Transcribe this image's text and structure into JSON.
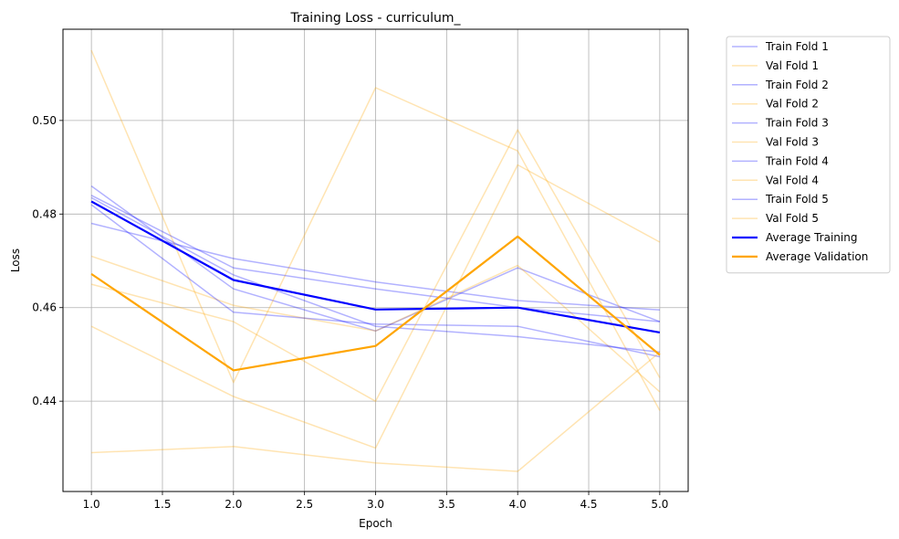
{
  "chart_data": {
    "type": "line",
    "title": "Training Loss - curriculum_",
    "xlabel": "Epoch",
    "ylabel": "Loss",
    "x": [
      1,
      2,
      3,
      4,
      5
    ],
    "xlim": [
      0.8,
      5.2
    ],
    "ylim": [
      0.4207,
      0.5195
    ],
    "xticks": [
      1.0,
      1.5,
      2.0,
      2.5,
      3.0,
      3.5,
      4.0,
      4.5,
      5.0
    ],
    "xtick_labels": [
      "1.0",
      "1.5",
      "2.0",
      "2.5",
      "3.0",
      "3.5",
      "4.0",
      "4.5",
      "5.0"
    ],
    "yticks": [
      0.44,
      0.46,
      0.48,
      0.5
    ],
    "ytick_labels": [
      "0.44",
      "0.46",
      "0.48",
      "0.50"
    ],
    "grid": true,
    "legend_position": "outside-right",
    "colors": {
      "train": "#0000ff",
      "val": "#ffa500"
    },
    "series": [
      {
        "name": "Train Fold 1",
        "kind": "train",
        "values": [
          0.486,
          0.464,
          0.455,
          0.4685,
          0.457
        ]
      },
      {
        "name": "Val Fold 1",
        "kind": "val",
        "values": [
          0.515,
          0.444,
          0.507,
          0.4935,
          0.438
        ]
      },
      {
        "name": "Train Fold 2",
        "kind": "train",
        "values": [
          0.478,
          0.4705,
          0.4655,
          0.4615,
          0.4595
        ]
      },
      {
        "name": "Val Fold 2",
        "kind": "val",
        "values": [
          0.471,
          0.4605,
          0.455,
          0.469,
          0.442
        ]
      },
      {
        "name": "Train Fold 3",
        "kind": "train",
        "values": [
          0.482,
          0.459,
          0.4565,
          0.456,
          0.4495
        ]
      },
      {
        "name": "Val Fold 3",
        "kind": "val",
        "values": [
          0.465,
          0.457,
          0.44,
          0.498,
          0.445
        ]
      },
      {
        "name": "Train Fold 4",
        "kind": "train",
        "values": [
          0.484,
          0.4685,
          0.464,
          0.46,
          0.457
        ]
      },
      {
        "name": "Val Fold 4",
        "kind": "val",
        "values": [
          0.456,
          0.441,
          0.43,
          0.4905,
          0.474
        ]
      },
      {
        "name": "Train Fold 5",
        "kind": "train",
        "values": [
          0.4835,
          0.467,
          0.456,
          0.4538,
          0.4505
        ]
      },
      {
        "name": "Val Fold 5",
        "kind": "val",
        "values": [
          0.429,
          0.4303,
          0.4268,
          0.425,
          0.4505
        ]
      },
      {
        "name": "Average Training",
        "kind": "avg-train",
        "values": [
          0.4827,
          0.4659,
          0.4596,
          0.46,
          0.4547
        ]
      },
      {
        "name": "Average Validation",
        "kind": "avg-val",
        "values": [
          0.4672,
          0.4466,
          0.4518,
          0.4752,
          0.4499
        ]
      }
    ]
  }
}
